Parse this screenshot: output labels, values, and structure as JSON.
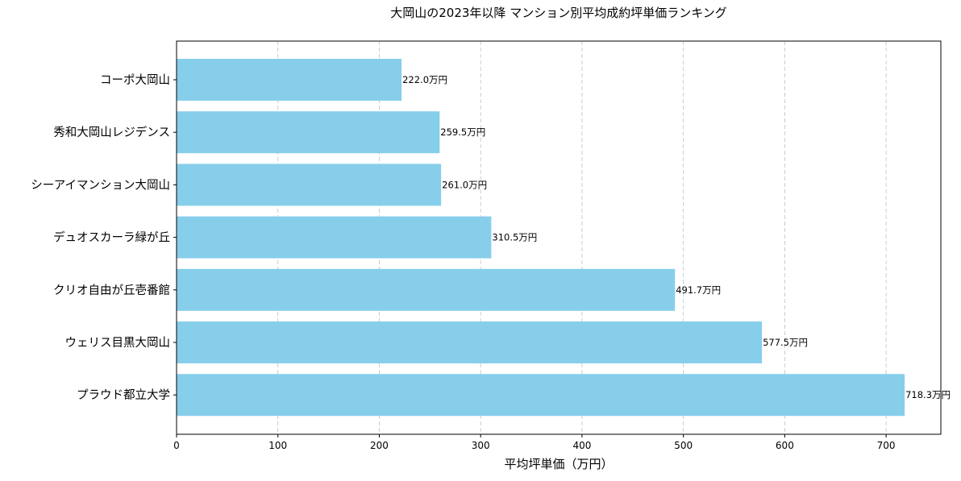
{
  "chart_data": {
    "type": "bar",
    "orientation": "horizontal",
    "title": "大岡山の2023年以降 マンション別平均成約坪単価ランキング",
    "xlabel": "平均坪単価（万円）",
    "ylabel": "",
    "categories": [
      "コーポ大岡山",
      "秀和大岡山レジデンス",
      "シーアイマンション大岡山",
      "デュオスカーラ緑が丘",
      "クリオ自由が丘壱番館",
      "ウェリス目黒大岡山",
      "プラウド都立大学"
    ],
    "values": [
      222.0,
      259.5,
      261.0,
      310.5,
      491.7,
      577.5,
      718.3
    ],
    "data_labels": [
      "222.0万円",
      "259.5万円",
      "261.0万円",
      "310.5万円",
      "491.7万円",
      "577.5万円",
      "718.3万円"
    ],
    "xlim": [
      0,
      754
    ],
    "xticks": [
      0,
      100,
      200,
      300,
      400,
      500,
      600,
      700
    ],
    "grid": "x-dashed",
    "bar_color": "#87ceeb",
    "grid_color": "#c0c0c0"
  }
}
